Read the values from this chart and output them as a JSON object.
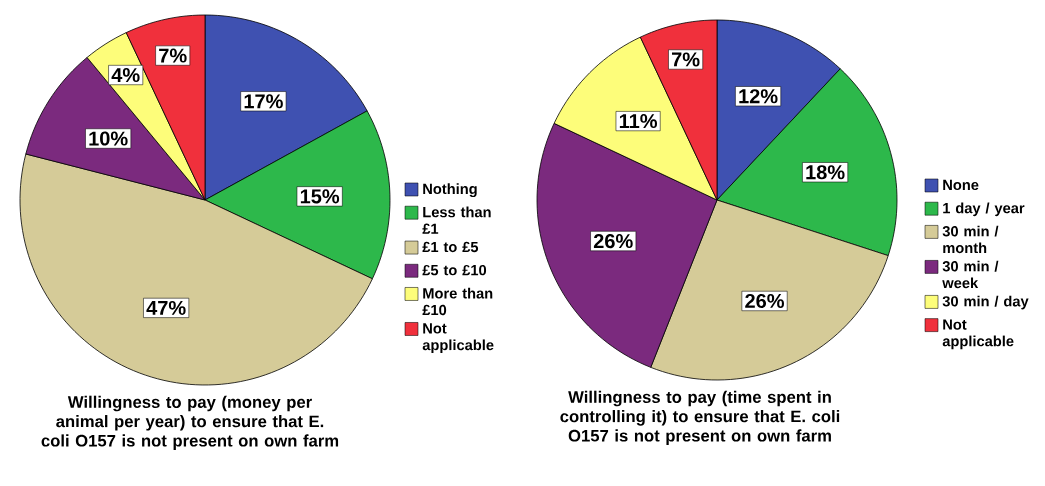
{
  "chart_data": [
    {
      "type": "pie",
      "title": "Willingness to pay (money per animal per year) to ensure that E. coli O157 is not present on own farm",
      "categories": [
        "Nothing",
        "Less than £1",
        "£1 to £5",
        "£5 to £10",
        "More than £10",
        "Not applicable"
      ],
      "values": [
        17,
        15,
        47,
        10,
        4,
        7
      ],
      "value_labels": [
        "17%",
        "15%",
        "47%",
        "10%",
        "4%",
        "7%"
      ],
      "colors": [
        "#3f51b1",
        "#2db84b",
        "#d5cb98",
        "#7b2a7e",
        "#fdfd7a",
        "#f0303c"
      ],
      "legend": "right"
    },
    {
      "type": "pie",
      "title": "Willingness to pay (time spent in controlling it) to ensure that E. coli O157 is not present on own farm",
      "categories": [
        "None",
        "1 day / year",
        "30 min / month",
        "30 min / week",
        "30 min / day",
        "Not applicable"
      ],
      "values": [
        12,
        18,
        26,
        26,
        11,
        7
      ],
      "value_labels": [
        "12%",
        "18%",
        "26%",
        "26%",
        "11%",
        "7%"
      ],
      "colors": [
        "#3f51b1",
        "#2db84b",
        "#d5cb98",
        "#7b2a7e",
        "#fdfd7a",
        "#f0303c"
      ],
      "legend": "right"
    }
  ]
}
